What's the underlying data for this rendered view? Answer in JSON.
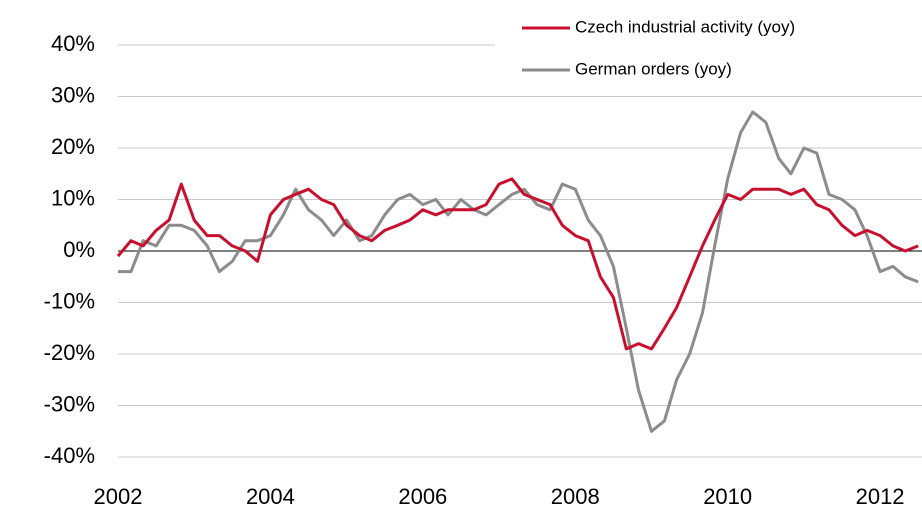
{
  "chart_data": {
    "type": "line",
    "x": [
      2002,
      2002.17,
      2002.33,
      2002.5,
      2002.67,
      2002.83,
      2003,
      2003.17,
      2003.33,
      2003.5,
      2003.67,
      2003.83,
      2004,
      2004.17,
      2004.33,
      2004.5,
      2004.67,
      2004.83,
      2005,
      2005.17,
      2005.33,
      2005.5,
      2005.67,
      2005.83,
      2006,
      2006.17,
      2006.33,
      2006.5,
      2006.67,
      2006.83,
      2007,
      2007.17,
      2007.33,
      2007.5,
      2007.67,
      2007.83,
      2008,
      2008.17,
      2008.33,
      2008.5,
      2008.67,
      2008.83,
      2009,
      2009.17,
      2009.33,
      2009.5,
      2009.67,
      2009.83,
      2010,
      2010.17,
      2010.33,
      2010.5,
      2010.67,
      2010.83,
      2011,
      2011.17,
      2011.33,
      2011.5,
      2011.67,
      2011.83,
      2012,
      2012.17,
      2012.33,
      2012.5
    ],
    "series": [
      {
        "name": "Czech industrial activity (yoy)",
        "color": "#c8102e",
        "values": [
          -1,
          2,
          1,
          4,
          6,
          13,
          6,
          3,
          3,
          1,
          0,
          -2,
          7,
          10,
          11,
          12,
          10,
          9,
          5,
          3,
          2,
          4,
          5,
          6,
          8,
          7,
          8,
          8,
          8,
          9,
          13,
          14,
          11,
          10,
          9,
          5,
          3,
          2,
          -5,
          -9,
          -19,
          -18,
          -19,
          -15,
          -11,
          -5,
          1,
          6,
          11,
          10,
          12,
          12,
          12,
          11,
          12,
          9,
          8,
          5,
          3,
          4,
          3,
          1,
          0,
          1
        ]
      },
      {
        "name": "German orders (yoy)",
        "color": "#8c8c8c",
        "values": [
          -4,
          -4,
          2,
          1,
          5,
          5,
          4,
          1,
          -4,
          -2,
          2,
          2,
          3,
          7,
          12,
          8,
          6,
          3,
          6,
          2,
          3,
          7,
          10,
          11,
          9,
          10,
          7,
          10,
          8,
          7,
          9,
          11,
          12,
          9,
          8,
          13,
          12,
          6,
          3,
          -3,
          -15,
          -27,
          -35,
          -33,
          -25,
          -20,
          -12,
          1,
          14,
          23,
          27,
          25,
          18,
          15,
          20,
          19,
          11,
          10,
          8,
          3,
          -4,
          -3,
          -5,
          -6
        ]
      }
    ],
    "xlim": [
      2002,
      2012.55
    ],
    "xticks": [
      2002,
      2004,
      2006,
      2008,
      2010,
      2012
    ],
    "ylim": [
      -40,
      40
    ],
    "yticks": [
      {
        "value": -40,
        "label": "-40%"
      },
      {
        "value": -30,
        "label": "-30%"
      },
      {
        "value": -20,
        "label": "-20%"
      },
      {
        "value": -10,
        "label": "-10%"
      },
      {
        "value": 0,
        "label": "0%"
      },
      {
        "value": 10,
        "label": "10%"
      },
      {
        "value": 20,
        "label": "20%"
      },
      {
        "value": 30,
        "label": "30%"
      },
      {
        "value": 40,
        "label": "40%"
      }
    ],
    "grid": true,
    "legend": "top-right"
  }
}
